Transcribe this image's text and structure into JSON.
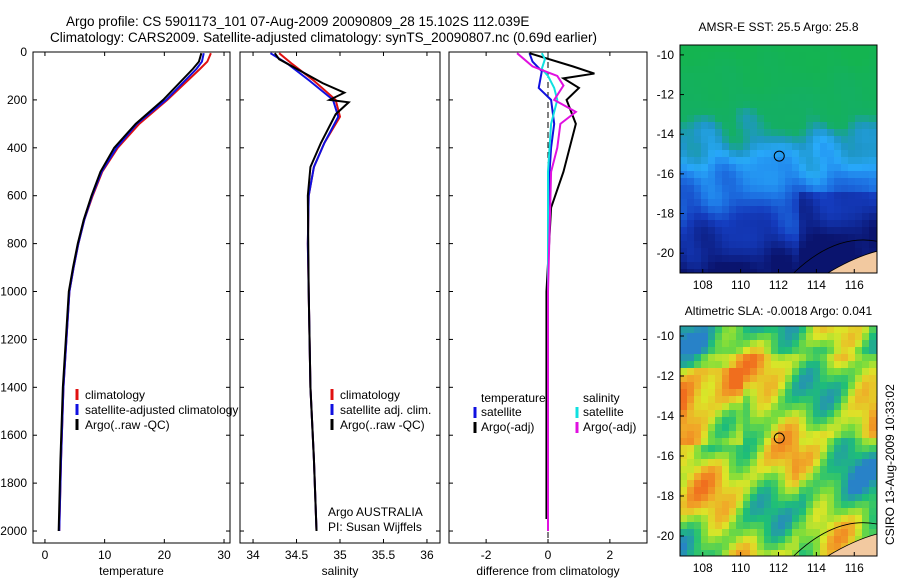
{
  "header": {
    "line1": "Argo profile: CS 5901173_101 07-Aug-2009 20090809_28 15.102S 112.039E",
    "line2": "Climatology: CARS2009. Satellite-adjusted climatology: synTS_20090807.nc (0.69d earlier)"
  },
  "chart_data": [
    {
      "type": "line",
      "xlabel": "temperature",
      "xlim": [
        -2,
        31
      ],
      "xticks": [
        0,
        10,
        20,
        30
      ],
      "ylim": [
        2050,
        0
      ],
      "yticks": [
        0,
        200,
        400,
        600,
        800,
        1000,
        1200,
        1400,
        1600,
        1800,
        2000
      ],
      "legend": [
        "climatology",
        "satellite-adjusted climatology",
        "Argo(..raw -QC)"
      ],
      "series": [
        {
          "name": "climatology",
          "color": "#e01010",
          "x": [
            27.8,
            27.2,
            26.0,
            20.5,
            15.8,
            12.2,
            9.6,
            8.0,
            6.6,
            5.6,
            4.8,
            4.1,
            3.6,
            3.1,
            2.7,
            2.4
          ],
          "y": [
            5,
            40,
            70,
            200,
            300,
            400,
            500,
            600,
            700,
            800,
            900,
            1000,
            1200,
            1400,
            1700,
            2000
          ]
        },
        {
          "name": "satellite-adjusted climatology",
          "color": "#1010e0",
          "x": [
            26.6,
            26.3,
            25.4,
            20.3,
            15.4,
            12.0,
            9.5,
            7.9,
            6.6,
            5.6,
            4.8,
            4.1,
            3.6,
            3.1,
            2.7,
            2.4
          ],
          "y": [
            5,
            40,
            70,
            200,
            300,
            400,
            500,
            600,
            700,
            800,
            900,
            1000,
            1200,
            1400,
            1700,
            2000
          ]
        },
        {
          "name": "Argo(..raw -QC)",
          "color": "#000000",
          "x": [
            26.2,
            25.8,
            24.8,
            19.8,
            15.2,
            11.6,
            9.3,
            7.8,
            6.5,
            5.5,
            4.7,
            4.0,
            3.5,
            3.0,
            2.6,
            2.3
          ],
          "y": [
            5,
            40,
            70,
            200,
            300,
            400,
            500,
            600,
            700,
            800,
            900,
            1000,
            1200,
            1400,
            1700,
            2000
          ]
        }
      ]
    },
    {
      "type": "line",
      "xlabel": "salinity",
      "xlim": [
        33.85,
        36.15
      ],
      "xticks": [
        34,
        34.5,
        35,
        35.5,
        36
      ],
      "xticklabels": [
        "34",
        "34.5",
        "35",
        "35.5",
        "36"
      ],
      "ylim": [
        2050,
        0
      ],
      "legend": [
        "climatology",
        "satellite adj. clim.",
        "Argo(..raw -QC)"
      ],
      "annotation": [
        "Argo AUSTRALIA",
        "PI: Susan Wijffels"
      ],
      "series": [
        {
          "name": "climatology",
          "color": "#e01010",
          "x": [
            34.3,
            34.45,
            34.7,
            34.95,
            35.0,
            34.82,
            34.7,
            34.64,
            34.63,
            34.64,
            34.66,
            34.7,
            34.73
          ],
          "y": [
            5,
            50,
            120,
            200,
            270,
            380,
            480,
            600,
            800,
            1000,
            1400,
            1700,
            2000
          ]
        },
        {
          "name": "satellite adj. clim.",
          "color": "#1010e0",
          "x": [
            34.2,
            34.4,
            34.65,
            34.92,
            34.98,
            34.82,
            34.7,
            34.64,
            34.63,
            34.64,
            34.66,
            34.7,
            34.73
          ],
          "y": [
            5,
            50,
            120,
            200,
            270,
            380,
            480,
            600,
            800,
            1000,
            1400,
            1700,
            2000
          ]
        },
        {
          "name": "Argo(..raw -QC)",
          "color": "#000000",
          "x": [
            34.25,
            34.3,
            34.55,
            34.8,
            35.05,
            34.88,
            35.1,
            34.95,
            34.78,
            34.66,
            34.63,
            34.64,
            34.66,
            34.7,
            34.73
          ],
          "y": [
            5,
            30,
            80,
            130,
            170,
            200,
            210,
            260,
            380,
            480,
            600,
            1000,
            1400,
            1700,
            2000
          ]
        }
      ]
    },
    {
      "type": "line",
      "xlabel": "difference from climatology",
      "xlim": [
        -3.2,
        3.2
      ],
      "xticks": [
        -2,
        0,
        2
      ],
      "ylim": [
        2050,
        0
      ],
      "legend_left_title": "temperature",
      "legend_right_title": "salinity",
      "legend": [
        "satellite",
        "Argo(-adj)",
        "satellite",
        "Argo(-adj)"
      ],
      "series": [
        {
          "name": "satellite",
          "color": "#1010e0",
          "x": [
            -0.6,
            -0.5,
            -0.2,
            -0.3,
            0.1,
            0.2,
            0.1,
            0.05,
            0,
            0,
            0
          ],
          "y": [
            5,
            40,
            80,
            150,
            200,
            300,
            400,
            500,
            700,
            1200,
            2000
          ]
        },
        {
          "name": "Argo(-adj)",
          "color": "#000000",
          "x": [
            -0.6,
            0.8,
            1.5,
            0.5,
            1.0,
            0.6,
            0.9,
            0.7,
            0.5,
            0.1,
            -0.05,
            -0.05,
            -0.05
          ],
          "y": [
            5,
            60,
            90,
            110,
            150,
            200,
            300,
            400,
            500,
            650,
            1000,
            1500,
            1950
          ]
        },
        {
          "name": "satellite",
          "color": "#10e0e0",
          "x": [
            -0.2,
            -0.1,
            -0.2,
            0,
            0.2,
            0.3,
            0.1,
            0,
            0,
            0
          ],
          "y": [
            5,
            30,
            70,
            100,
            150,
            200,
            300,
            500,
            1200,
            2000
          ]
        },
        {
          "name": "Argo(-adj)",
          "color": "#e010e0",
          "x": [
            -1.0,
            -0.5,
            0.3,
            0.5,
            0.2,
            0.9,
            0.4,
            0.3,
            0.1,
            0,
            0
          ],
          "y": [
            5,
            60,
            100,
            140,
            200,
            250,
            300,
            400,
            500,
            1000,
            2000
          ]
        }
      ]
    },
    {
      "type": "heatmap",
      "title": "AMSR-E SST: 25.5 Argo: 25.8",
      "xlim": [
        106.8,
        117.2
      ],
      "ylim": [
        -21,
        -9.5
      ],
      "xticks": [
        108,
        110,
        112,
        114,
        116
      ],
      "yticks": [
        -10,
        -12,
        -14,
        -16,
        -18,
        -20
      ],
      "marker": {
        "lon": 112.039,
        "lat": -15.102
      }
    },
    {
      "type": "heatmap",
      "title": "Altimetric SLA: -0.0018 Argo: 0.041",
      "xlim": [
        106.8,
        117.2
      ],
      "ylim": [
        -21,
        -9.5
      ],
      "xticks": [
        108,
        110,
        112,
        114,
        116
      ],
      "yticks": [
        -10,
        -12,
        -14,
        -16,
        -18,
        -20
      ],
      "marker": {
        "lon": 112.039,
        "lat": -15.102
      }
    }
  ],
  "footer": {
    "side_text": "CSIRO 13-Aug-2009 10:33:02"
  }
}
